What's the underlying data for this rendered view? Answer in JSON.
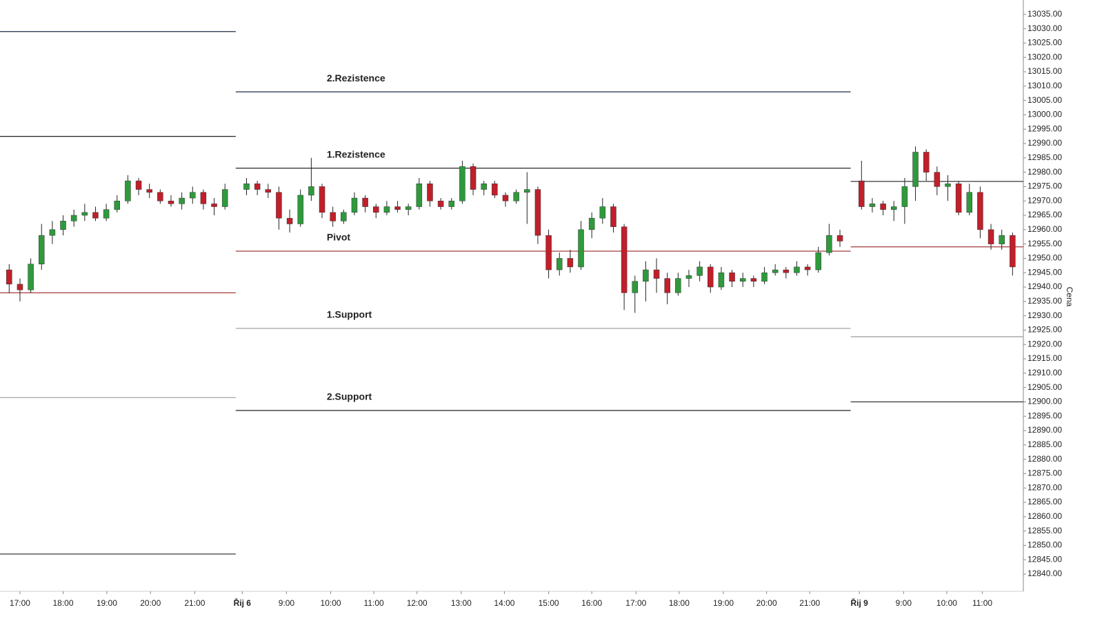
{
  "chart_data": {
    "type": "candlestick",
    "y_label": "Cena",
    "ylim": [
      12834,
      13040
    ],
    "xlim": [
      -0.85,
      94
    ],
    "yticks": [
      {
        "value": 12840,
        "label": "12840.00"
      },
      {
        "value": 12845,
        "label": "12845.00"
      },
      {
        "value": 12850,
        "label": "12850.00"
      },
      {
        "value": 12855,
        "label": "12855.00"
      },
      {
        "value": 12860,
        "label": "12860.00"
      },
      {
        "value": 12865,
        "label": "12865.00"
      },
      {
        "value": 12870,
        "label": "12870.00"
      },
      {
        "value": 12875,
        "label": "12875.00"
      },
      {
        "value": 12880,
        "label": "12880.00"
      },
      {
        "value": 12885,
        "label": "12885.00"
      },
      {
        "value": 12890,
        "label": "12890.00"
      },
      {
        "value": 12895,
        "label": "12895.00"
      },
      {
        "value": 12900,
        "label": "12900.00"
      },
      {
        "value": 12905,
        "label": "12905.00"
      },
      {
        "value": 12910,
        "label": "12910.00"
      },
      {
        "value": 12915,
        "label": "12915.00"
      },
      {
        "value": 12920,
        "label": "12920.00"
      },
      {
        "value": 12925,
        "label": "12925.00"
      },
      {
        "value": 12930,
        "label": "12930.00"
      },
      {
        "value": 12935,
        "label": "12935.00"
      },
      {
        "value": 12940,
        "label": "12940.00"
      },
      {
        "value": 12945,
        "label": "12945.00"
      },
      {
        "value": 12950,
        "label": "12950.00"
      },
      {
        "value": 12955,
        "label": "12955.00"
      },
      {
        "value": 12960,
        "label": "12960.00"
      },
      {
        "value": 12965,
        "label": "12965.00"
      },
      {
        "value": 12970,
        "label": "12970.00"
      },
      {
        "value": 12975,
        "label": "12975.00"
      },
      {
        "value": 12980,
        "label": "12980.00"
      },
      {
        "value": 12985,
        "label": "12985.00"
      },
      {
        "value": 12990,
        "label": "12990.00"
      },
      {
        "value": 12995,
        "label": "12995.00"
      },
      {
        "value": 13000,
        "label": "13000.00"
      },
      {
        "value": 13005,
        "label": "13005.00"
      },
      {
        "value": 13010,
        "label": "13010.00"
      },
      {
        "value": 13015,
        "label": "13015.00"
      },
      {
        "value": 13020,
        "label": "13020.00"
      },
      {
        "value": 13025,
        "label": "13025.00"
      },
      {
        "value": 13030,
        "label": "13030.00"
      },
      {
        "value": 13035,
        "label": "13035.00"
      }
    ],
    "xticks": [
      {
        "value": 1.0,
        "label": "17:00"
      },
      {
        "value": 5.0,
        "label": "18:00"
      },
      {
        "value": 9.05,
        "label": "19:00"
      },
      {
        "value": 13.1,
        "label": "20:00"
      },
      {
        "value": 17.2,
        "label": "21:00"
      },
      {
        "value": 21.6,
        "label": "Řij 6",
        "bold": true
      },
      {
        "value": 25.7,
        "label": "9:00"
      },
      {
        "value": 29.8,
        "label": "10:00"
      },
      {
        "value": 33.8,
        "label": "11:00"
      },
      {
        "value": 37.8,
        "label": "12:00"
      },
      {
        "value": 41.9,
        "label": "13:00"
      },
      {
        "value": 45.9,
        "label": "14:00"
      },
      {
        "value": 50.0,
        "label": "15:00"
      },
      {
        "value": 54.0,
        "label": "16:00"
      },
      {
        "value": 58.1,
        "label": "17:00"
      },
      {
        "value": 62.1,
        "label": "18:00"
      },
      {
        "value": 66.2,
        "label": "19:00"
      },
      {
        "value": 70.2,
        "label": "20:00"
      },
      {
        "value": 74.2,
        "label": "21:00"
      },
      {
        "value": 78.8,
        "label": "Řij 9",
        "bold": true
      },
      {
        "value": 82.9,
        "label": "9:00"
      },
      {
        "value": 86.9,
        "label": "10:00"
      },
      {
        "value": 90.2,
        "label": "11:00"
      }
    ],
    "up_color": "#2f9a3c",
    "down_color": "#c11f2a",
    "level_names": [
      "2.Rezistence",
      "1.Rezistence",
      "Pivot",
      "1.Support",
      "2.Support"
    ],
    "level_colors": [
      "#1f2a44",
      "#222222",
      "#a33a3a",
      "#999999",
      "#222222"
    ],
    "sessions": [
      {
        "levels": [
          13029,
          12992.5,
          12938,
          12901.5,
          12847
        ],
        "open": [
          12946,
          12941,
          12939,
          12948,
          12958,
          12960,
          12963,
          12965,
          12966,
          12964,
          12967,
          12970,
          12977,
          12974,
          12973,
          12970,
          12969,
          12971,
          12973,
          12969,
          12968
        ],
        "high": [
          12948,
          12943,
          12950,
          12962,
          12963,
          12965,
          12967,
          12969,
          12968,
          12969,
          12972,
          12979,
          12978,
          12976,
          12974,
          12972,
          12973,
          12975,
          12974,
          12971,
          12976
        ],
        "low": [
          12938,
          12935,
          12938,
          12946,
          12955,
          12958,
          12961,
          12963,
          12963,
          12963,
          12966,
          12969,
          12972,
          12971,
          12969,
          12968,
          12967,
          12969,
          12967,
          12965,
          12967
        ],
        "close": [
          12941,
          12939,
          12948,
          12958,
          12960,
          12963,
          12965,
          12966,
          12964,
          12967,
          12970,
          12977,
          12974,
          12973,
          12970,
          12969,
          12971,
          12973,
          12969,
          12968,
          12974
        ]
      },
      {
        "levels": [
          13008,
          12981.4,
          12952.5,
          12925.6,
          12897
        ],
        "open": [
          12974,
          12976,
          12974,
          12973,
          12964,
          12962,
          12972,
          12975,
          12966,
          12963,
          12966,
          12971,
          12968,
          12966,
          12968,
          12967,
          12968,
          12976,
          12970,
          12968,
          12970,
          12982,
          12974,
          12976,
          12972,
          12970,
          12973,
          12974,
          12958,
          12946,
          12950,
          12947,
          12960,
          12964,
          12968,
          12961,
          12938,
          12942,
          12946,
          12943,
          12938,
          12943,
          12944,
          12947,
          12940,
          12945,
          12942,
          12943,
          12942,
          12945,
          12946,
          12945,
          12947,
          12946,
          12952,
          12958
        ],
        "high": [
          12978,
          12977,
          12976,
          12975,
          12967,
          12974,
          12985,
          12976,
          12968,
          12967,
          12973,
          12972,
          12969,
          12970,
          12970,
          12969,
          12978,
          12977,
          12971,
          12971,
          12984,
          12983,
          12977,
          12977,
          12973,
          12974,
          12980,
          12975,
          12960,
          12952,
          12953,
          12963,
          12966,
          12971,
          12969,
          12962,
          12944,
          12949,
          12950,
          12945,
          12945,
          12946,
          12949,
          12948,
          12947,
          12946,
          12945,
          12944,
          12947,
          12948,
          12947,
          12949,
          12948,
          12954,
          12962,
          12960
        ],
        "low": [
          12972,
          12972,
          12971,
          12960,
          12959,
          12961,
          12970,
          12964,
          12961,
          12962,
          12965,
          12966,
          12964,
          12965,
          12966,
          12965,
          12967,
          12968,
          12967,
          12967,
          12969,
          12972,
          12972,
          12971,
          12968,
          12969,
          12962,
          12955,
          12943,
          12944,
          12945,
          12946,
          12957,
          12962,
          12959,
          12932,
          12931,
          12935,
          12938,
          12934,
          12937,
          12940,
          12942,
          12938,
          12939,
          12940,
          12940,
          12940,
          12941,
          12944,
          12943,
          12944,
          12944,
          12945,
          12951,
          12954
        ],
        "close": [
          12976,
          12974,
          12973,
          12964,
          12962,
          12972,
          12975,
          12966,
          12963,
          12966,
          12971,
          12968,
          12966,
          12968,
          12967,
          12968,
          12976,
          12970,
          12968,
          12970,
          12982,
          12974,
          12976,
          12972,
          12970,
          12973,
          12974,
          12958,
          12946,
          12950,
          12947,
          12960,
          12964,
          12968,
          12961,
          12938,
          12942,
          12946,
          12943,
          12938,
          12943,
          12944,
          12947,
          12940,
          12945,
          12942,
          12943,
          12942,
          12945,
          12946,
          12945,
          12947,
          12946,
          12952,
          12958,
          12956
        ]
      },
      {
        "levels": [
          null,
          12976.8,
          12954,
          12922.7,
          12900
        ],
        "open": [
          12977,
          12968,
          12969,
          12967,
          12968,
          12975,
          12987,
          12980,
          12975,
          12976,
          12966,
          12973,
          12960,
          12955,
          12958
        ],
        "high": [
          12984,
          12971,
          12970,
          12970,
          12978,
          12989,
          12988,
          12982,
          12979,
          12977,
          12976,
          12975,
          12962,
          12960,
          12959
        ],
        "low": [
          12967,
          12966,
          12965,
          12963,
          12962,
          12970,
          12977,
          12972,
          12970,
          12965,
          12965,
          12957,
          12953,
          12953,
          12944
        ],
        "close": [
          12968,
          12969,
          12967,
          12968,
          12975,
          12987,
          12980,
          12975,
          12976,
          12966,
          12973,
          12960,
          12955,
          12958,
          12947
        ]
      }
    ]
  }
}
